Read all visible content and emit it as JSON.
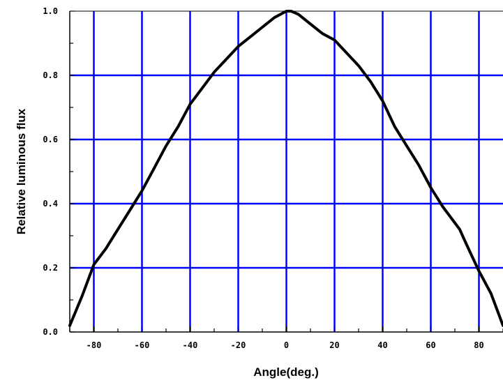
{
  "chart_data": {
    "type": "line",
    "title": "",
    "xlabel": "Angle(deg.)",
    "ylabel": "Relative luminous flux",
    "xlim": [
      -90,
      90
    ],
    "ylim": [
      0.0,
      1.0
    ],
    "x_ticks": [
      -80,
      -60,
      -40,
      -20,
      0,
      20,
      40,
      60,
      80
    ],
    "x_tick_labels": [
      "-80",
      "-60",
      "-40",
      "-20",
      "0",
      "20",
      "40",
      "60",
      "80"
    ],
    "y_ticks": [
      0.0,
      0.2,
      0.4,
      0.6,
      0.8,
      1.0
    ],
    "y_tick_labels": [
      "0.0",
      "0.2",
      "0.4",
      "0.6",
      "0.8",
      "1.0"
    ],
    "x_grid": [
      -80,
      -60,
      -40,
      -20,
      0,
      20,
      40,
      60,
      80
    ],
    "y_grid": [
      0.2,
      0.4,
      0.6,
      0.8
    ],
    "grid": true,
    "grid_color": "#0000ff",
    "line_color": "#000000",
    "series": [
      {
        "x": [
          -90,
          -85,
          -80,
          -75,
          -70,
          -65,
          -60,
          -55,
          -50,
          -45,
          -40,
          -35,
          -30,
          -25,
          -20,
          -15,
          -10,
          -5,
          0,
          2,
          5,
          10,
          15,
          20,
          25,
          30,
          35,
          40,
          45,
          50,
          55,
          60,
          65,
          70,
          72,
          75,
          80,
          85,
          90
        ],
        "y": [
          0.02,
          0.11,
          0.21,
          0.26,
          0.32,
          0.38,
          0.44,
          0.51,
          0.58,
          0.64,
          0.71,
          0.76,
          0.81,
          0.85,
          0.89,
          0.92,
          0.95,
          0.98,
          1.0,
          1.0,
          0.99,
          0.96,
          0.93,
          0.91,
          0.87,
          0.83,
          0.78,
          0.72,
          0.64,
          0.58,
          0.52,
          0.45,
          0.39,
          0.34,
          0.32,
          0.27,
          0.19,
          0.12,
          0.02
        ]
      }
    ]
  }
}
